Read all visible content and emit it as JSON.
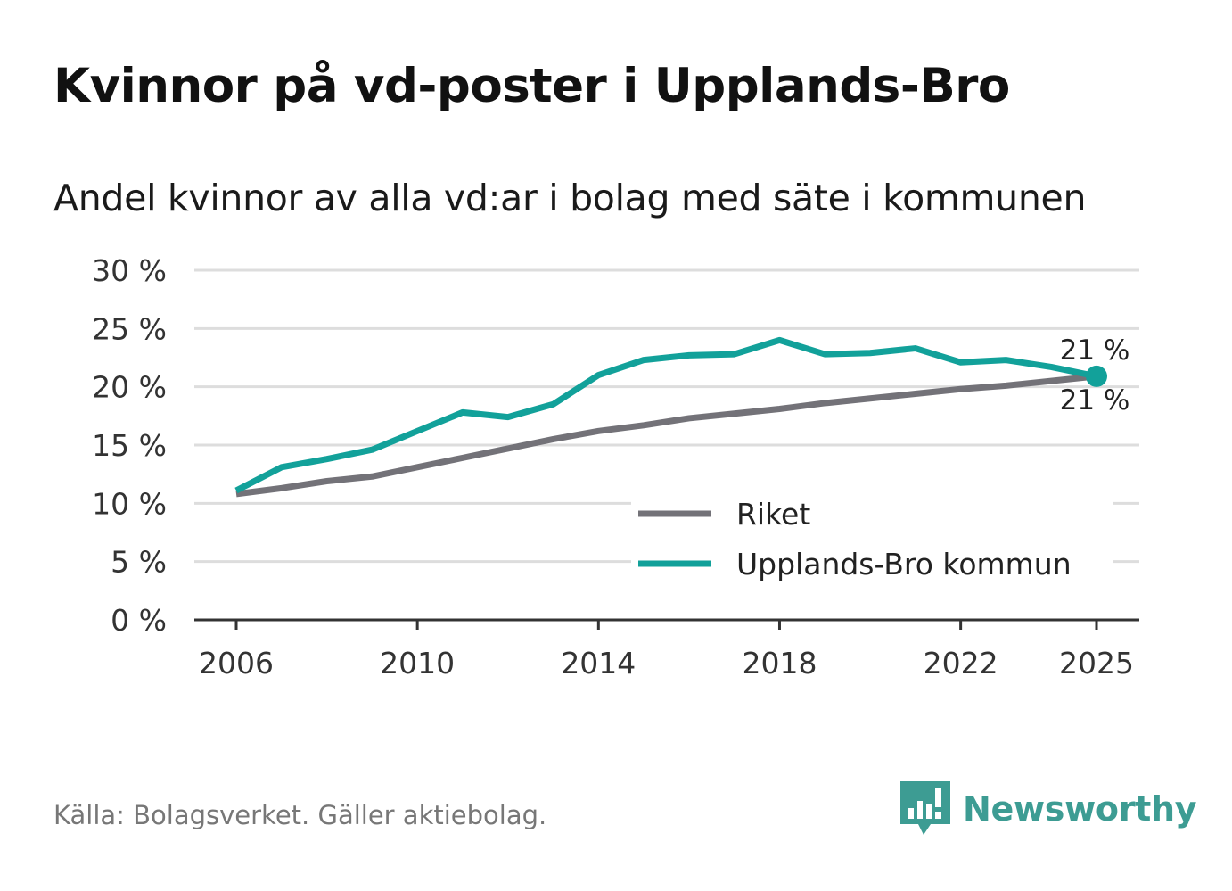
{
  "title": "Kvinnor på vd-poster i Upplands-Bro",
  "subtitle": "Andel kvinnor av alla vd:ar i bolag med säte i kommunen",
  "source": "Källa: Bolagsverket. Gäller aktiebolag.",
  "brand": {
    "name": "Newsworthy",
    "icon": "bar-chart-speech-bubble-icon",
    "color": "#3d9c93"
  },
  "colors": {
    "riket": "#737278",
    "kommun": "#12a19a",
    "grid": "#dddddd",
    "axis": "#333333"
  },
  "chart_data": {
    "type": "line",
    "title": "Kvinnor på vd-poster i Upplands-Bro",
    "xlabel": "",
    "ylabel": "",
    "x": [
      2006,
      2007,
      2008,
      2009,
      2010,
      2011,
      2012,
      2013,
      2014,
      2015,
      2016,
      2017,
      2018,
      2019,
      2020,
      2021,
      2022,
      2023,
      2024,
      2025
    ],
    "xlim": [
      2006,
      2025
    ],
    "ylim": [
      0,
      30
    ],
    "x_ticks": [
      {
        "value": 2006,
        "label": "2006"
      },
      {
        "value": 2010,
        "label": "2010"
      },
      {
        "value": 2014,
        "label": "2014"
      },
      {
        "value": 2018,
        "label": "2018"
      },
      {
        "value": 2022,
        "label": "2022"
      },
      {
        "value": 2025,
        "label": "2025"
      }
    ],
    "y_ticks": [
      {
        "value": 0,
        "label": "0 %"
      },
      {
        "value": 5,
        "label": "5 %"
      },
      {
        "value": 10,
        "label": "10 %"
      },
      {
        "value": 15,
        "label": "15 %"
      },
      {
        "value": 20,
        "label": "20 %"
      },
      {
        "value": 25,
        "label": "25 %"
      },
      {
        "value": 30,
        "label": "30 %"
      }
    ],
    "series": [
      {
        "name": "Riket",
        "color": "#737278",
        "values": [
          10.8,
          11.3,
          11.9,
          12.3,
          13.1,
          13.9,
          14.7,
          15.5,
          16.2,
          16.7,
          17.3,
          17.7,
          18.1,
          18.6,
          19.0,
          19.4,
          19.8,
          20.1,
          20.5,
          20.9
        ],
        "end_label": "21 %"
      },
      {
        "name": "Upplands-Bro kommun",
        "color": "#12a19a",
        "values": [
          11.1,
          13.1,
          13.8,
          14.6,
          16.2,
          17.8,
          17.4,
          18.5,
          21.0,
          22.3,
          22.7,
          22.8,
          24.0,
          22.8,
          22.9,
          23.3,
          22.1,
          22.3,
          21.7,
          20.9
        ],
        "end_label": "21 %"
      }
    ],
    "legend": {
      "position": "bottom-right",
      "items": [
        "Riket",
        "Upplands-Bro kommun"
      ]
    },
    "grid": true
  }
}
